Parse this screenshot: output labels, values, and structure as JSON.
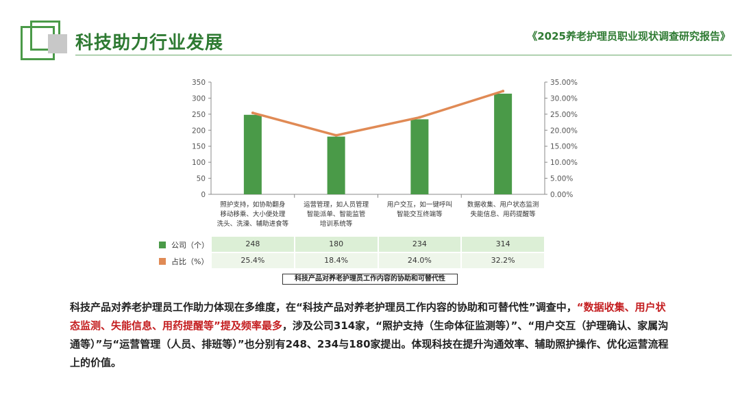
{
  "header": {
    "page_title": "科技助力行业发展",
    "report_title": "《2025养老护理员职业现状调查研究报告》"
  },
  "colors": {
    "bar": "#4a9a48",
    "line": "#e08a55",
    "title": "#2e7a32",
    "highlight": "#c41e20"
  },
  "chart_data": {
    "type": "bar",
    "categories": [
      [
        "照护支持，如协助翻身",
        "移动移乘、大小便处理",
        "洗头、洗澡、辅助进食等"
      ],
      [
        "运营管理，如人员管理",
        "智能派单、智能监管",
        "培训系统等"
      ],
      [
        "用户交互，如一键呼叫",
        "智能交互终端等"
      ],
      [
        "数据收集、用户状态监测",
        "失能信息、用药提醒等"
      ]
    ],
    "series": [
      {
        "name": "公司（个）",
        "type": "bar",
        "axis": "left",
        "values": [
          248,
          180,
          234,
          314
        ],
        "labels": [
          "248",
          "180",
          "234",
          "314"
        ]
      },
      {
        "name": "占比（%）",
        "type": "line",
        "axis": "right",
        "values": [
          25.4,
          18.4,
          24.0,
          32.2
        ],
        "labels": [
          "25.4%",
          "18.4%",
          "24.0%",
          "32.2%"
        ]
      }
    ],
    "y_left": {
      "min": 0,
      "max": 350,
      "ticks": [
        "0",
        "50",
        "100",
        "150",
        "200",
        "250",
        "300",
        "350"
      ]
    },
    "y_right": {
      "min": 0,
      "max": 35,
      "ticks": [
        "0.00%",
        "5.00%",
        "10.00%",
        "15.00%",
        "20.00%",
        "25.00%",
        "30.00%",
        "35.00%"
      ]
    },
    "caption": "科技产品对养老护理员工作内容的协助和可替代性",
    "grid": false
  },
  "description": {
    "p1": "科技产品对养老护理员工作助力体现在多维度，在“科技产品对养老护理员工作内容的协助和可替代性”调查中，",
    "p2": "“数据收集、用户状态监测、失能信息、用药提醒等”提及频率最多",
    "p3": "，涉及公司314家，“照护支持（生命体征监测等）”、“用户交互（护理确认、家属沟通等）”与“运营管理（人员、排班等）”也分别有248、234与180家提出。体现科技在提升沟通效率、辅助照护操作、优化运营流程上的价值。"
  }
}
